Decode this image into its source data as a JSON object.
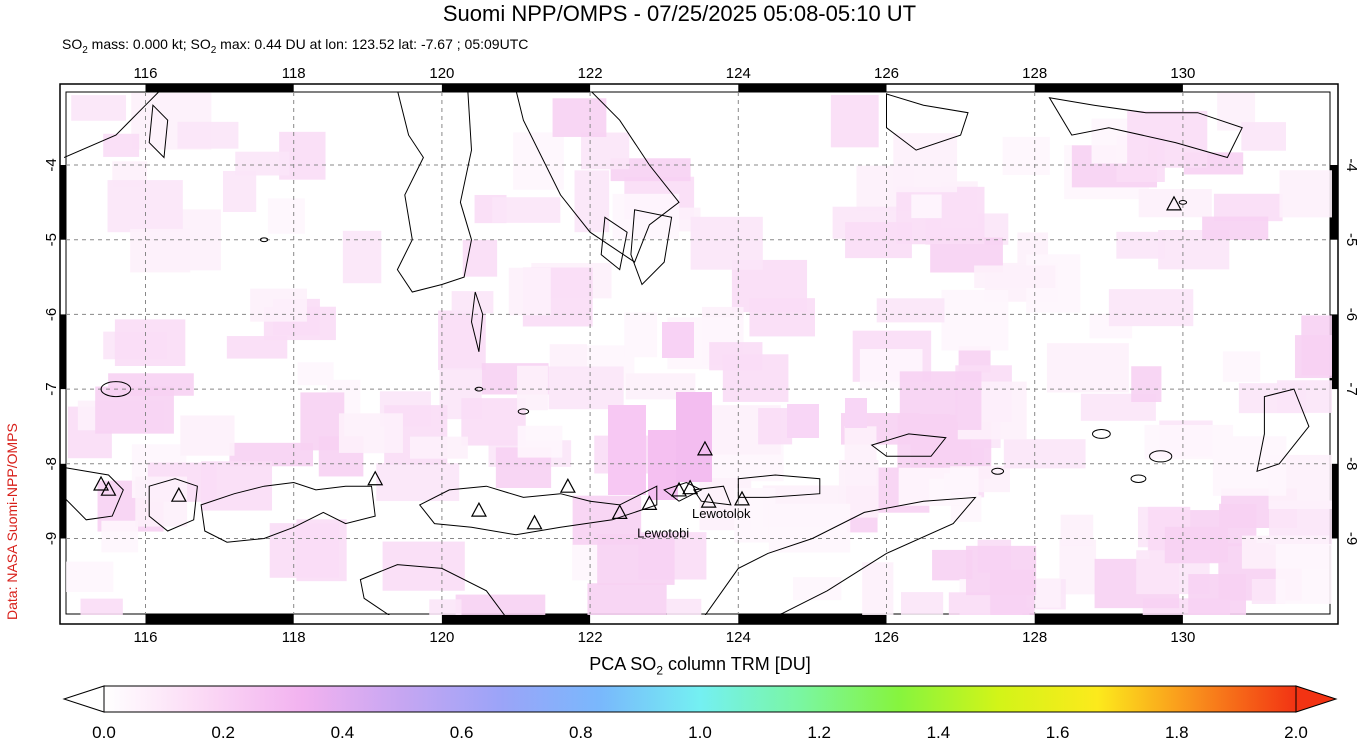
{
  "title": "Suomi NPP/OMPS - 07/25/2025 05:08-05:10 UT",
  "subtitle": {
    "part1": "SO",
    "sub1": "2",
    "part2": " mass: 0.000 kt; SO",
    "sub2": "2",
    "part3": " max: 0.44 DU at lon: 123.52 lat: -7.67 ; 05:09UTC"
  },
  "credit": "Data: NASA Suomi-NPP/OMPS",
  "map": {
    "lon_range": [
      114.9,
      132.1
    ],
    "lat_range": [
      -10.1,
      -3.0
    ],
    "lon_ticks": [
      "116",
      "118",
      "120",
      "122",
      "124",
      "126",
      "128",
      "130"
    ],
    "lat_ticks": [
      "-4",
      "-5",
      "-6",
      "-7",
      "-8",
      "-9"
    ],
    "coast_color": "#000000",
    "grid_color": "#888888"
  },
  "volcanoes": [
    {
      "name": "Lewotobi",
      "lon": 122.77,
      "lat": -8.53,
      "label": "Lewotobi"
    },
    {
      "name": "Lewotolok",
      "lon": 123.51,
      "lat": -8.27,
      "label": "Lewotolok"
    }
  ],
  "volcano_markers": [
    {
      "lon": 115.4,
      "lat": -8.27
    },
    {
      "lon": 115.5,
      "lat": -8.34
    },
    {
      "lon": 116.45,
      "lat": -8.42
    },
    {
      "lon": 119.1,
      "lat": -8.2
    },
    {
      "lon": 120.5,
      "lat": -8.62
    },
    {
      "lon": 121.25,
      "lat": -8.79
    },
    {
      "lon": 121.7,
      "lat": -8.3
    },
    {
      "lon": 122.4,
      "lat": -8.65
    },
    {
      "lon": 122.8,
      "lat": -8.53
    },
    {
      "lon": 123.2,
      "lat": -8.35
    },
    {
      "lon": 123.35,
      "lat": -8.32
    },
    {
      "lon": 123.6,
      "lat": -8.5
    },
    {
      "lon": 124.05,
      "lat": -8.47
    },
    {
      "lon": 123.55,
      "lat": -7.8
    },
    {
      "lon": 129.88,
      "lat": -4.52
    }
  ],
  "colorbar": {
    "title_pre": "PCA SO",
    "title_sub": "2",
    "title_post": " column TRM [DU]",
    "min": 0.0,
    "max": 2.0,
    "tick_labels": [
      "0.0",
      "0.2",
      "0.4",
      "0.6",
      "0.8",
      "1.0",
      "1.2",
      "1.4",
      "1.6",
      "1.8",
      "2.0"
    ],
    "stops": [
      "#ffffff",
      "#fbd9f5",
      "#f2b2f0",
      "#c6a6f2",
      "#9ba4f8",
      "#79b8fc",
      "#74f0f2",
      "#7af6a2",
      "#86f43e",
      "#d2f418",
      "#fcea1c",
      "#f98d1c",
      "#f23313"
    ]
  }
}
